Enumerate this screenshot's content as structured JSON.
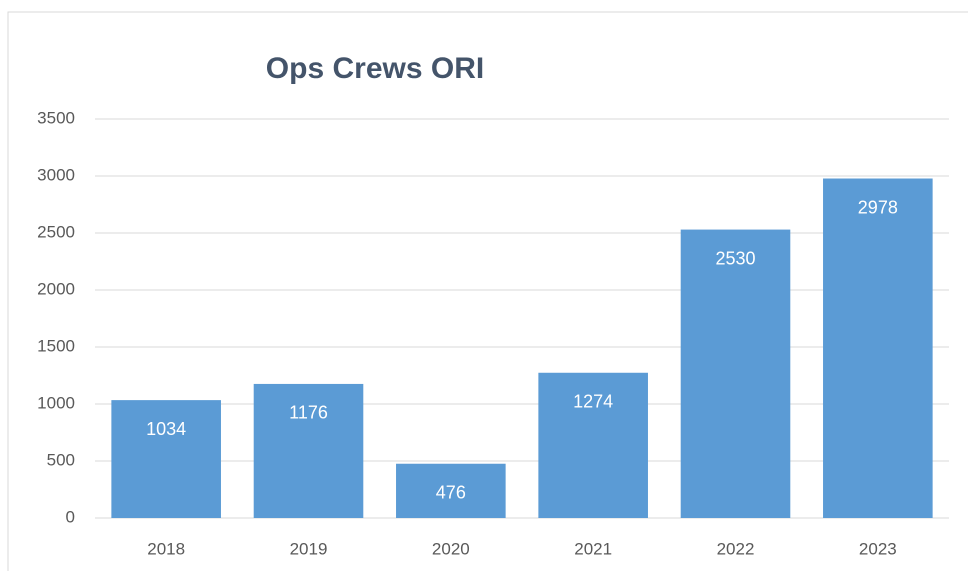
{
  "chart_data": {
    "type": "bar",
    "title": "Ops Crews ORI",
    "categories": [
      "2018",
      "2019",
      "2020",
      "2021",
      "2022",
      "2023"
    ],
    "values": [
      1034,
      1176,
      476,
      1274,
      2530,
      2978
    ],
    "color": "#5b9bd5",
    "ylim": [
      0,
      3500
    ],
    "yticks": [
      0,
      500,
      1000,
      1500,
      2000,
      2500,
      3000,
      3500
    ],
    "grid": true
  }
}
